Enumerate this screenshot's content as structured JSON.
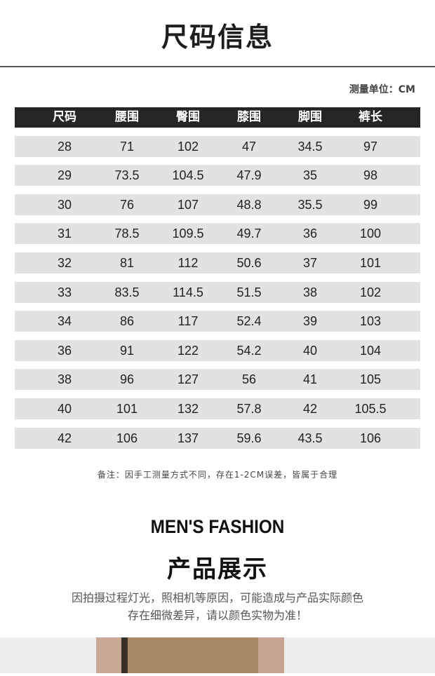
{
  "title": "尺码信息",
  "unit_label": "测量单位：CM",
  "table": {
    "headers": [
      "尺码",
      "腰围",
      "臀围",
      "膝围",
      "脚围",
      "裤长"
    ],
    "rows": [
      [
        "28",
        "71",
        "102",
        "47",
        "34.5",
        "97"
      ],
      [
        "29",
        "73.5",
        "104.5",
        "47.9",
        "35",
        "98"
      ],
      [
        "30",
        "76",
        "107",
        "48.8",
        "35.5",
        "99"
      ],
      [
        "31",
        "78.5",
        "109.5",
        "49.7",
        "36",
        "100"
      ],
      [
        "32",
        "81",
        "112",
        "50.6",
        "37",
        "101"
      ],
      [
        "33",
        "83.5",
        "114.5",
        "51.5",
        "38",
        "102"
      ],
      [
        "34",
        "86",
        "117",
        "52.4",
        "39",
        "103"
      ],
      [
        "36",
        "91",
        "122",
        "54.2",
        "40",
        "104"
      ],
      [
        "38",
        "96",
        "127",
        "56",
        "41",
        "105"
      ],
      [
        "40",
        "101",
        "132",
        "57.8",
        "42",
        "105.5"
      ],
      [
        "42",
        "106",
        "137",
        "59.6",
        "43.5",
        "106"
      ]
    ]
  },
  "note": "备注：因手工测量方式不同，存在1-2CM误差，皆属于合理",
  "section": {
    "english_title": "MEN'S FASHION",
    "title": "产品展示",
    "description_lines": [
      "因拍摄过程灯光，照相机等原因，可能造成与产品实际颜色",
      "存在细微差异，请以颜色实物为准！"
    ]
  },
  "colors": {
    "header_bg": "#262626",
    "row_bg": "#e2e2e2",
    "shirt": "#a88a66"
  }
}
